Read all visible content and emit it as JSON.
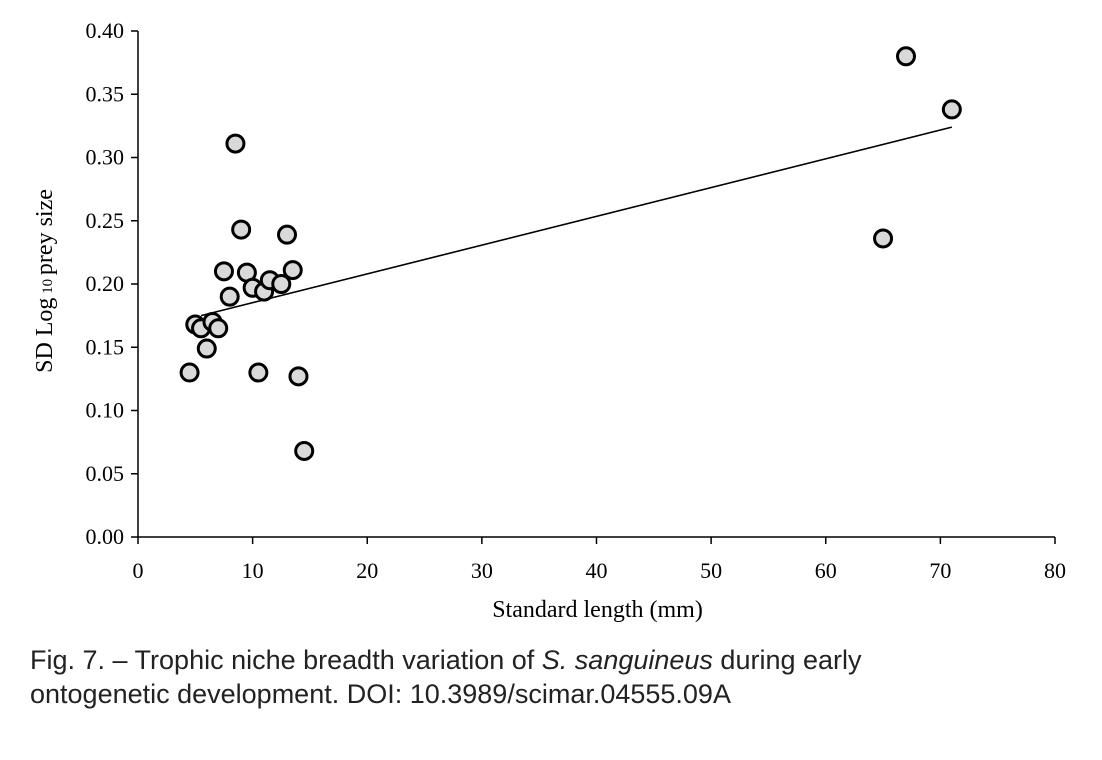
{
  "chart_data": {
    "type": "scatter",
    "xlabel": "Standard length (mm)",
    "ylabel": {
      "pre": "SD Log",
      "sub": " 10 ",
      "post": "prey size"
    },
    "xlim": [
      0,
      80
    ],
    "ylim": [
      0,
      0.4
    ],
    "x_ticks": [
      "0",
      "10",
      "20",
      "30",
      "40",
      "50",
      "60",
      "70",
      "80"
    ],
    "y_ticks": [
      "0.00",
      "0.05",
      "0.10",
      "0.15",
      "0.20",
      "0.25",
      "0.30",
      "0.35",
      "0.40"
    ],
    "grid": false,
    "legend": "none",
    "points": [
      {
        "x": 4.5,
        "y": 0.13
      },
      {
        "x": 5.0,
        "y": 0.168
      },
      {
        "x": 5.5,
        "y": 0.165
      },
      {
        "x": 6.0,
        "y": 0.149
      },
      {
        "x": 6.5,
        "y": 0.17
      },
      {
        "x": 7.0,
        "y": 0.165
      },
      {
        "x": 7.5,
        "y": 0.21
      },
      {
        "x": 8.0,
        "y": 0.19
      },
      {
        "x": 8.5,
        "y": 0.311
      },
      {
        "x": 9.0,
        "y": 0.243
      },
      {
        "x": 9.5,
        "y": 0.209
      },
      {
        "x": 10.0,
        "y": 0.197
      },
      {
        "x": 10.5,
        "y": 0.13
      },
      {
        "x": 11.0,
        "y": 0.194
      },
      {
        "x": 11.5,
        "y": 0.203
      },
      {
        "x": 12.5,
        "y": 0.2
      },
      {
        "x": 13.0,
        "y": 0.239
      },
      {
        "x": 13.5,
        "y": 0.211
      },
      {
        "x": 14.0,
        "y": 0.127
      },
      {
        "x": 14.5,
        "y": 0.068
      },
      {
        "x": 65.0,
        "y": 0.236
      },
      {
        "x": 67.0,
        "y": 0.38
      },
      {
        "x": 71.0,
        "y": 0.338
      }
    ],
    "trendline": {
      "x": [
        5.5,
        71.0
      ],
      "y": [
        0.175,
        0.324
      ]
    },
    "colors": {
      "marker_fill": "#d9d9d9",
      "marker_stroke": "#000000"
    }
  },
  "caption": {
    "prefix": "Fig. 7. – Trophic niche breadth variation of ",
    "species": "S. sanguineus",
    "line1_suffix": " during early",
    "line2": "ontogenetic development. DOI: 10.3989/scimar.04555.09A"
  }
}
